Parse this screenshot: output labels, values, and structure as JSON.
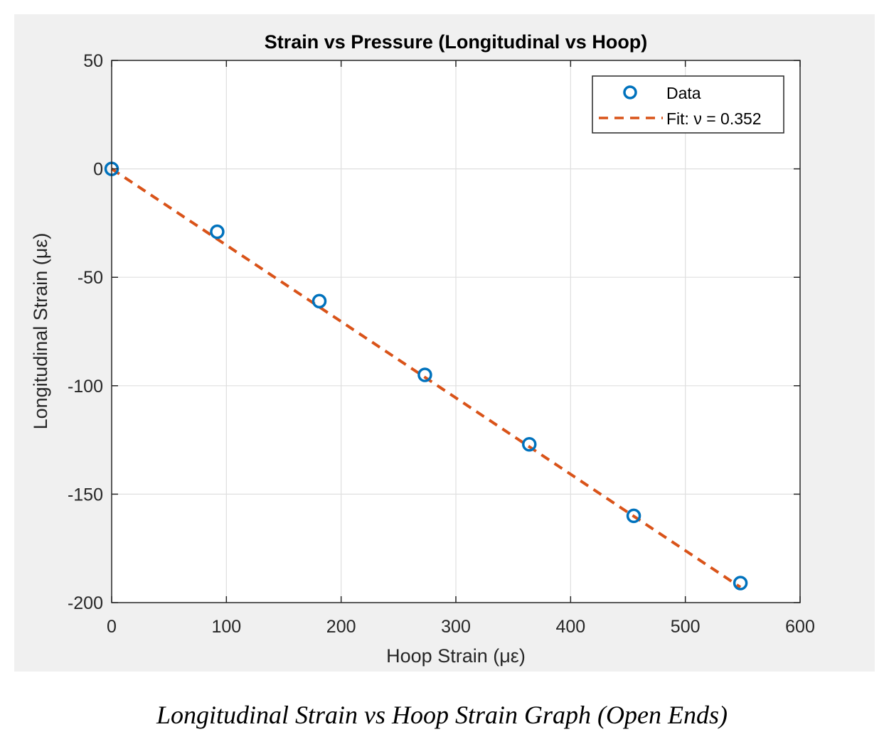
{
  "chart_data": {
    "type": "scatter",
    "title": "Strain vs Pressure (Longitudinal vs Hoop)",
    "xlabel": "Hoop Strain (με)",
    "ylabel": "Longitudinal Strain (με)",
    "xlim": [
      0,
      600
    ],
    "ylim": [
      -200,
      50
    ],
    "xticks": [
      0,
      100,
      200,
      300,
      400,
      500,
      600
    ],
    "yticks": [
      -200,
      -150,
      -100,
      -50,
      0,
      50
    ],
    "grid": true,
    "legend_position": "top-right",
    "series": [
      {
        "name": "Data",
        "kind": "markers",
        "marker": "circle",
        "color": "#0072BD",
        "x": [
          0,
          92,
          181,
          273,
          364,
          455,
          548
        ],
        "y": [
          0,
          -29,
          -61,
          -95,
          -127,
          -160,
          -191
        ]
      },
      {
        "name": "Fit: ν = 0.352",
        "kind": "line",
        "style": "dashed",
        "color": "#D95319",
        "x": [
          0,
          548
        ],
        "y": [
          0,
          -192.9
        ]
      }
    ],
    "legend": [
      {
        "label": "Data",
        "symbol": "circle-marker",
        "color": "#0072BD"
      },
      {
        "label": "Fit: ν = 0.352",
        "symbol": "dashed-line",
        "color": "#D95319"
      }
    ]
  },
  "caption": "Longitudinal Strain vs Hoop Strain Graph (Open Ends)",
  "colors": {
    "figure_background": "#f0f0f0",
    "axes_background": "#ffffff",
    "grid": "#dfdfdf",
    "axis": "#262626"
  }
}
